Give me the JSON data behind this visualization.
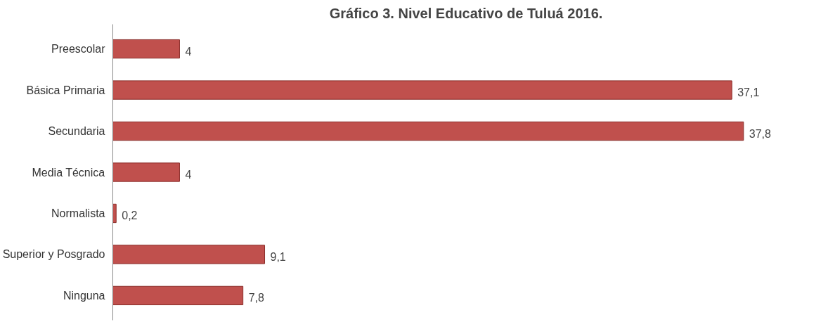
{
  "chart_data": {
    "type": "bar",
    "orientation": "horizontal",
    "title": "Gráfico 3. Nivel Educativo de Tuluá 2016.",
    "categories": [
      "Preescolar",
      "Básica Primaria",
      "Secundaria",
      "Media Técnica",
      "Normalista",
      "Superior y Posgrado",
      "Ninguna"
    ],
    "values": [
      4,
      37.1,
      37.8,
      4,
      0.2,
      9.1,
      7.8
    ],
    "value_labels": [
      "4",
      "37,1",
      "37,8",
      "4",
      "0,2",
      "9,1",
      "7,8"
    ],
    "color": "#c0504d",
    "grid": false,
    "tick_labels": "y"
  }
}
